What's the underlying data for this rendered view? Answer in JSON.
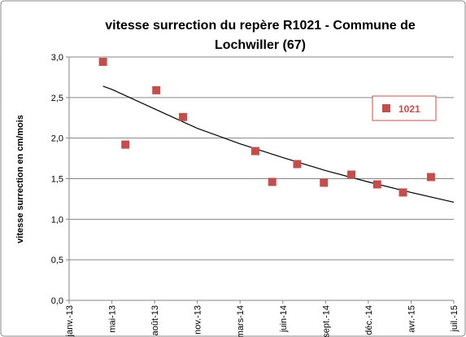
{
  "chart_data": {
    "type": "scatter",
    "title": [
      "vitesse surrection du repère R1021 - Commune de",
      "Lochwiller (67)"
    ],
    "y_label": "vitesse surrection en cm/mois",
    "xlim": [
      41275,
      42184
    ],
    "xticks": [
      {
        "value": 41275,
        "label": "janv.-13"
      },
      {
        "value": 41376,
        "label": "mai-13"
      },
      {
        "value": 41477,
        "label": "août-13"
      },
      {
        "value": 41578,
        "label": "nov.-13"
      },
      {
        "value": 41679,
        "label": "mars-14"
      },
      {
        "value": 41780,
        "label": "juin-14"
      },
      {
        "value": 41881,
        "label": "sept.-14"
      },
      {
        "value": 41982,
        "label": "déc.-14"
      },
      {
        "value": 42083,
        "label": "avr.-15"
      },
      {
        "value": 42184,
        "label": "juil.-15"
      }
    ],
    "ylim": [
      0,
      3
    ],
    "yticks": [
      {
        "value": 0,
        "label": "0,0"
      },
      {
        "value": 0.5,
        "label": "0,5"
      },
      {
        "value": 1,
        "label": "1,0"
      },
      {
        "value": 1.5,
        "label": "1,5"
      },
      {
        "value": 2,
        "label": "2,0"
      },
      {
        "value": 2.5,
        "label": "2,5"
      },
      {
        "value": 3,
        "label": "3,0"
      }
    ],
    "grid": true,
    "series": [
      {
        "name": "1021",
        "color": "#c0504d",
        "x": [
          41355,
          41408,
          41481,
          41544,
          41715,
          41755,
          41814,
          41877,
          41942,
          42003,
          42064,
          42130
        ],
        "values": [
          2.94,
          1.92,
          2.59,
          2.26,
          1.84,
          1.46,
          1.68,
          1.45,
          1.55,
          1.43,
          1.33,
          1.52
        ]
      }
    ],
    "trendline": {
      "color": "#000000",
      "x": [
        41355,
        41376,
        41477,
        41578,
        41679,
        41780,
        41881,
        41982,
        42083,
        42184
      ],
      "values": [
        2.64,
        2.6,
        2.36,
        2.12,
        1.93,
        1.76,
        1.6,
        1.46,
        1.33,
        1.21
      ]
    },
    "legend": "right"
  }
}
